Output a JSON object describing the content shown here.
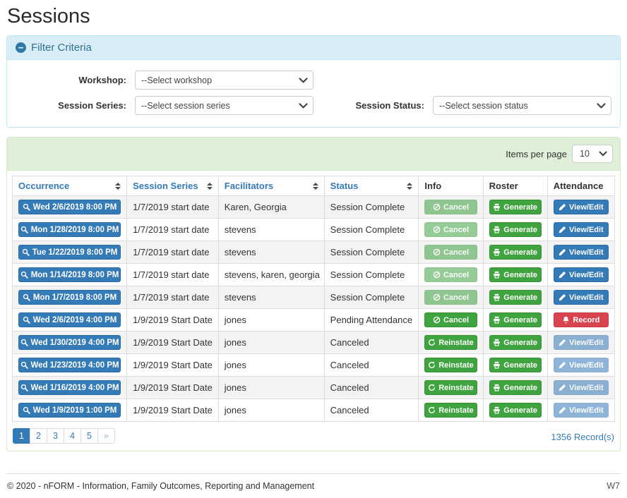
{
  "page": {
    "title": "Sessions"
  },
  "colors": {
    "primary": "#337ab7",
    "primary_border": "#2e6da4",
    "success": "#3fa33f",
    "success_border": "#389338",
    "danger": "#d9434f",
    "danger_border": "#c63a46",
    "info_heading_bg": "#d9edf7",
    "info_heading_text": "#31708f",
    "info_border": "#bce8f1",
    "success_heading_bg": "#dff0d8",
    "success_panel_border": "#d6e9c6",
    "stripe": "#f3f3f3",
    "table_border": "#dddddd"
  },
  "filter": {
    "title": "Filter Criteria",
    "collapse_icon": "minus-circle-icon",
    "workshop": {
      "label": "Workshop:",
      "value": "--Select workshop"
    },
    "session_series": {
      "label": "Session Series:",
      "value": "--Select session series"
    },
    "session_status": {
      "label": "Session Status:",
      "value": "--Select session status"
    }
  },
  "table": {
    "items_per_page": {
      "label": "Items per page",
      "value": "10"
    },
    "columns": [
      {
        "label": "Occurrence",
        "sortable": true
      },
      {
        "label": "Session Series",
        "sortable": true
      },
      {
        "label": "Facilitators",
        "sortable": true
      },
      {
        "label": "Status",
        "sortable": true
      },
      {
        "label": "Info",
        "sortable": false
      },
      {
        "label": "Roster",
        "sortable": false
      },
      {
        "label": "Attendance",
        "sortable": false
      }
    ],
    "rows": [
      {
        "occurrence": "Wed 2/6/2019 8:00 PM",
        "session_series": "1/7/2019 start date",
        "facilitators": "Karen, Georgia",
        "status": "Session Complete",
        "info_button": {
          "label": "Cancel",
          "icon": "cancel-icon",
          "variant": "success",
          "disabled": true
        },
        "roster_button": {
          "label": "Generate",
          "icon": "printer-icon",
          "variant": "success",
          "disabled": false
        },
        "attendance_button": {
          "label": "View/Edit",
          "icon": "pencil-icon",
          "variant": "primary",
          "disabled": false
        }
      },
      {
        "occurrence": "Mon 1/28/2019 8:00 PM",
        "session_series": "1/7/2019 start date",
        "facilitators": "stevens",
        "status": "Session Complete",
        "info_button": {
          "label": "Cancel",
          "icon": "cancel-icon",
          "variant": "success",
          "disabled": true
        },
        "roster_button": {
          "label": "Generate",
          "icon": "printer-icon",
          "variant": "success",
          "disabled": false
        },
        "attendance_button": {
          "label": "View/Edit",
          "icon": "pencil-icon",
          "variant": "primary",
          "disabled": false
        }
      },
      {
        "occurrence": "Tue 1/22/2019 8:00 PM",
        "session_series": "1/7/2019 start date",
        "facilitators": "stevens",
        "status": "Session Complete",
        "info_button": {
          "label": "Cancel",
          "icon": "cancel-icon",
          "variant": "success",
          "disabled": true
        },
        "roster_button": {
          "label": "Generate",
          "icon": "printer-icon",
          "variant": "success",
          "disabled": false
        },
        "attendance_button": {
          "label": "View/Edit",
          "icon": "pencil-icon",
          "variant": "primary",
          "disabled": false
        }
      },
      {
        "occurrence": "Mon 1/14/2019 8:00 PM",
        "session_series": "1/7/2019 start date",
        "facilitators": "stevens, karen, georgia",
        "status": "Session Complete",
        "info_button": {
          "label": "Cancel",
          "icon": "cancel-icon",
          "variant": "success",
          "disabled": true
        },
        "roster_button": {
          "label": "Generate",
          "icon": "printer-icon",
          "variant": "success",
          "disabled": false
        },
        "attendance_button": {
          "label": "View/Edit",
          "icon": "pencil-icon",
          "variant": "primary",
          "disabled": false
        }
      },
      {
        "occurrence": "Mon 1/7/2019 8:00 PM",
        "session_series": "1/7/2019 start date",
        "facilitators": "stevens",
        "status": "Session Complete",
        "info_button": {
          "label": "Cancel",
          "icon": "cancel-icon",
          "variant": "success",
          "disabled": true
        },
        "roster_button": {
          "label": "Generate",
          "icon": "printer-icon",
          "variant": "success",
          "disabled": false
        },
        "attendance_button": {
          "label": "View/Edit",
          "icon": "pencil-icon",
          "variant": "primary",
          "disabled": false
        }
      },
      {
        "occurrence": "Wed 2/6/2019 4:00 PM",
        "session_series": "1/9/2019 Start Date",
        "facilitators": "jones",
        "status": "Pending Attendance",
        "info_button": {
          "label": "Cancel",
          "icon": "cancel-icon",
          "variant": "success",
          "disabled": false
        },
        "roster_button": {
          "label": "Generate",
          "icon": "printer-icon",
          "variant": "success",
          "disabled": false
        },
        "attendance_button": {
          "label": "Record",
          "icon": "bell-icon",
          "variant": "danger",
          "disabled": false
        }
      },
      {
        "occurrence": "Wed 1/30/2019 4:00 PM",
        "session_series": "1/9/2019 Start Date",
        "facilitators": "jones",
        "status": "Canceled",
        "info_button": {
          "label": "Reinstate",
          "icon": "reinstate-icon",
          "variant": "success",
          "disabled": false
        },
        "roster_button": {
          "label": "Generate",
          "icon": "printer-icon",
          "variant": "success",
          "disabled": false
        },
        "attendance_button": {
          "label": "View/Edit",
          "icon": "pencil-icon",
          "variant": "primary",
          "disabled": true
        }
      },
      {
        "occurrence": "Wed 1/23/2019 4:00 PM",
        "session_series": "1/9/2019 Start Date",
        "facilitators": "jones",
        "status": "Canceled",
        "info_button": {
          "label": "Reinstate",
          "icon": "reinstate-icon",
          "variant": "success",
          "disabled": false
        },
        "roster_button": {
          "label": "Generate",
          "icon": "printer-icon",
          "variant": "success",
          "disabled": false
        },
        "attendance_button": {
          "label": "View/Edit",
          "icon": "pencil-icon",
          "variant": "primary",
          "disabled": true
        }
      },
      {
        "occurrence": "Wed 1/16/2019 4:00 PM",
        "session_series": "1/9/2019 Start Date",
        "facilitators": "jones",
        "status": "Canceled",
        "info_button": {
          "label": "Reinstate",
          "icon": "reinstate-icon",
          "variant": "success",
          "disabled": false
        },
        "roster_button": {
          "label": "Generate",
          "icon": "printer-icon",
          "variant": "success",
          "disabled": false
        },
        "attendance_button": {
          "label": "View/Edit",
          "icon": "pencil-icon",
          "variant": "primary",
          "disabled": true
        }
      },
      {
        "occurrence": "Wed 1/9/2019 1:00 PM",
        "session_series": "1/9/2019 Start Date",
        "facilitators": "jones",
        "status": "Canceled",
        "info_button": {
          "label": "Reinstate",
          "icon": "reinstate-icon",
          "variant": "success",
          "disabled": false
        },
        "roster_button": {
          "label": "Generate",
          "icon": "printer-icon",
          "variant": "success",
          "disabled": false
        },
        "attendance_button": {
          "label": "View/Edit",
          "icon": "pencil-icon",
          "variant": "primary",
          "disabled": true
        }
      }
    ],
    "pagination": {
      "pages": [
        "1",
        "2",
        "3",
        "4",
        "5",
        "»"
      ],
      "active_index": 0,
      "records_label": "1356 Record(s)"
    }
  },
  "footer": {
    "copyright": "© 2020 - nFORM - Information, Family Outcomes, Reporting and Management",
    "version": "W7"
  }
}
